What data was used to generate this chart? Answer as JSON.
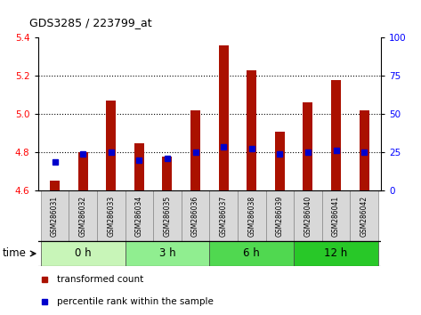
{
  "title": "GDS3285 / 223799_at",
  "samples": [
    "GSM286031",
    "GSM286032",
    "GSM286033",
    "GSM286034",
    "GSM286035",
    "GSM286036",
    "GSM286037",
    "GSM286038",
    "GSM286039",
    "GSM286040",
    "GSM286041",
    "GSM286042"
  ],
  "transformed_count": [
    4.65,
    4.8,
    5.07,
    4.85,
    4.78,
    5.02,
    5.36,
    5.23,
    4.91,
    5.06,
    5.18,
    5.02
  ],
  "percentile_rank": [
    4.75,
    4.79,
    4.8,
    4.76,
    4.77,
    4.8,
    4.83,
    4.82,
    4.79,
    4.8,
    4.81,
    4.8
  ],
  "ylim": [
    4.6,
    5.4
  ],
  "yticks": [
    4.6,
    4.8,
    5.0,
    5.2,
    5.4
  ],
  "right_yticks": [
    0,
    25,
    50,
    75,
    100
  ],
  "groups": [
    {
      "label": "0 h",
      "samples": [
        0,
        1,
        2
      ],
      "color": "#c8f5b8"
    },
    {
      "label": "3 h",
      "samples": [
        3,
        4,
        5
      ],
      "color": "#90ee90"
    },
    {
      "label": "6 h",
      "samples": [
        6,
        7,
        8
      ],
      "color": "#50d850"
    },
    {
      "label": "12 h",
      "samples": [
        9,
        10,
        11
      ],
      "color": "#28c828"
    }
  ],
  "bar_color": "#aa1100",
  "percentile_color": "#0000cc",
  "bar_bottom": 4.6,
  "legend_items": [
    {
      "label": "transformed count",
      "color": "#aa1100"
    },
    {
      "label": "percentile rank within the sample",
      "color": "#0000cc"
    }
  ],
  "time_label": "time"
}
